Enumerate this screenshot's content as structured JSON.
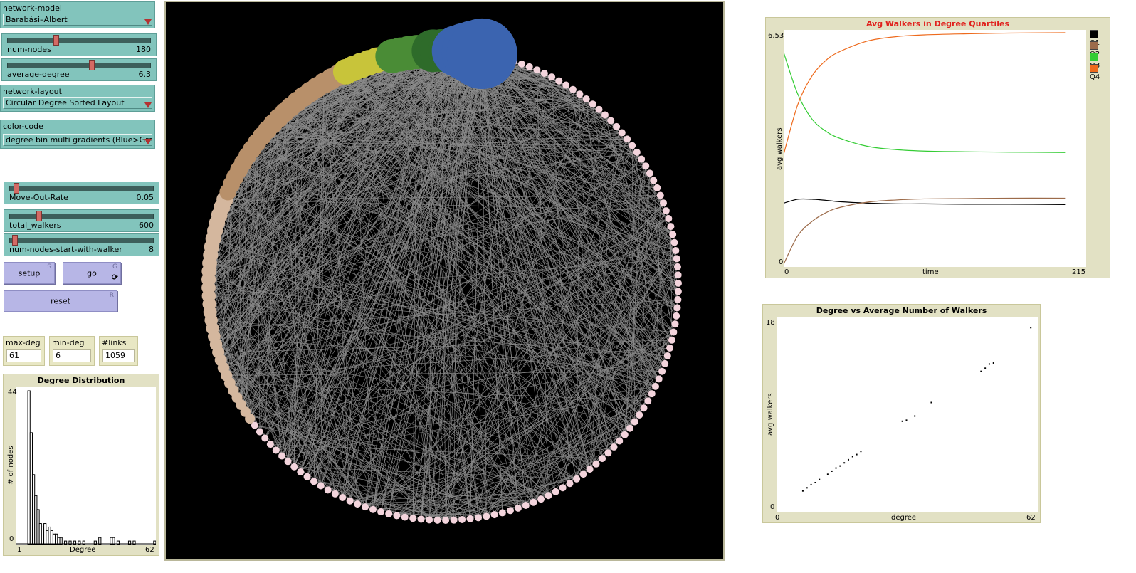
{
  "controls": {
    "network_model": {
      "label": "network-model",
      "value": "Barabási–Albert"
    },
    "num_nodes": {
      "label": "num-nodes",
      "value": "180",
      "fraction": 0.35
    },
    "average_degree": {
      "label": "average-degree",
      "value": "6.3",
      "fraction": 0.6
    },
    "network_layout": {
      "label": "network-layout",
      "value": "Circular Degree Sorted Layout"
    },
    "color_code": {
      "label": "color-code",
      "value": "degree bin multi gradients (Blue>Gree..."
    },
    "move_out_rate": {
      "label": "Move-Out-Rate",
      "value": "0.05",
      "fraction": 0.03
    },
    "total_walkers": {
      "label": "total_walkers",
      "value": "600",
      "fraction": 0.2
    },
    "num_nodes_start": {
      "label": "num-nodes-start-with-walker",
      "value": "8",
      "fraction": 0.03
    }
  },
  "buttons": {
    "setup": {
      "label": "setup",
      "key": "S"
    },
    "go": {
      "label": "go",
      "key": "G",
      "forever": "⟳"
    },
    "reset": {
      "label": "reset",
      "key": "R"
    }
  },
  "monitors": {
    "max_deg": {
      "label": "max-deg",
      "value": "61"
    },
    "min_deg": {
      "label": "min-deg",
      "value": "6"
    },
    "links": {
      "label": "#links",
      "value": "1059"
    }
  },
  "network": {
    "node_count": 180,
    "colors": {
      "hub_blue": "#3b64b0",
      "green_dark": "#2e6b2a",
      "green": "#4a8c36",
      "yellow": "#c8c43a",
      "tan": "#b8906a",
      "beige": "#d4b79e",
      "pink": "#f3d4dc",
      "edge": "#8c8c8c"
    }
  },
  "plot_degree_distribution": {
    "title": "Degree Distribution",
    "xlabel": "Degree",
    "ylabel": "# of nodes",
    "xmin": "1",
    "xmax": "62",
    "ymin": "0",
    "ymax": "44"
  },
  "plot_avg_walkers": {
    "title": "Avg Walkers in Degree Quartiles",
    "xlabel": "time",
    "ylabel": "avg walkers",
    "xmin": "0",
    "xmax": "215",
    "ymin": "0",
    "ymax": "6.53",
    "legend": [
      {
        "name": "Q1",
        "color": "#000000"
      },
      {
        "name": "Q2",
        "color": "#9c6b4a"
      },
      {
        "name": "Q3",
        "color": "#33cc33"
      },
      {
        "name": "Q4",
        "color": "#ee6a1c"
      }
    ]
  },
  "plot_degree_vs_walkers": {
    "title": "Degree vs Average Number of Walkers",
    "xlabel": "degree",
    "ylabel": "avg walkers",
    "xmin": "0",
    "xmax": "62",
    "ymin": "0",
    "ymax": "18"
  },
  "chart_data": [
    {
      "type": "bar",
      "title": "Degree Distribution",
      "xlabel": "Degree",
      "ylabel": "# of nodes",
      "xlim": [
        1,
        62
      ],
      "ylim": [
        0,
        44
      ],
      "x": [
        6,
        7,
        8,
        9,
        10,
        11,
        12,
        13,
        14,
        15,
        16,
        17,
        18,
        19,
        20,
        22,
        24,
        26,
        28,
        30,
        35,
        37,
        42,
        43,
        45,
        50,
        52,
        61
      ],
      "values": [
        44,
        32,
        20,
        14,
        10,
        6,
        5,
        6,
        4,
        5,
        4,
        3,
        3,
        2,
        2,
        1,
        1,
        1,
        1,
        1,
        1,
        2,
        2,
        2,
        1,
        1,
        1,
        1
      ]
    },
    {
      "type": "line",
      "title": "Avg Walkers in Degree Quartiles",
      "xlabel": "time",
      "ylabel": "avg walkers",
      "xlim": [
        0,
        215
      ],
      "ylim": [
        0,
        6.53
      ],
      "x": [
        0,
        10,
        20,
        30,
        40,
        60,
        80,
        100,
        130,
        160,
        200
      ],
      "series": [
        {
          "name": "Q1",
          "values": [
            1.72,
            1.83,
            1.83,
            1.8,
            1.76,
            1.72,
            1.7,
            1.7,
            1.69,
            1.69,
            1.68
          ]
        },
        {
          "name": "Q2",
          "values": [
            0,
            0.8,
            1.2,
            1.45,
            1.6,
            1.75,
            1.81,
            1.84,
            1.85,
            1.86,
            1.86
          ]
        },
        {
          "name": "Q3",
          "values": [
            5.97,
            4.8,
            4.1,
            3.75,
            3.55,
            3.32,
            3.23,
            3.19,
            3.17,
            3.16,
            3.15
          ]
        },
        {
          "name": "Q4",
          "values": [
            3.1,
            4.5,
            5.3,
            5.75,
            6.0,
            6.3,
            6.42,
            6.47,
            6.5,
            6.52,
            6.53
          ]
        }
      ]
    },
    {
      "type": "scatter",
      "title": "Degree vs Average Number of Walkers",
      "xlabel": "degree",
      "ylabel": "avg walkers",
      "xlim": [
        0,
        62
      ],
      "ylim": [
        0,
        18
      ],
      "points": [
        [
          6,
          1.8
        ],
        [
          7,
          2.1
        ],
        [
          8,
          2.4
        ],
        [
          9,
          2.6
        ],
        [
          10,
          2.9
        ],
        [
          12,
          3.4
        ],
        [
          13,
          3.7
        ],
        [
          14,
          4.0
        ],
        [
          15,
          4.2
        ],
        [
          16,
          4.5
        ],
        [
          17,
          4.8
        ],
        [
          18,
          5.1
        ],
        [
          19,
          5.3
        ],
        [
          20,
          5.6
        ],
        [
          30,
          8.5
        ],
        [
          31,
          8.6
        ],
        [
          33,
          9.0
        ],
        [
          37,
          10.3
        ],
        [
          49,
          13.3
        ],
        [
          50,
          13.6
        ],
        [
          51,
          14.0
        ],
        [
          52,
          14.1
        ],
        [
          61,
          17.5
        ]
      ]
    }
  ]
}
